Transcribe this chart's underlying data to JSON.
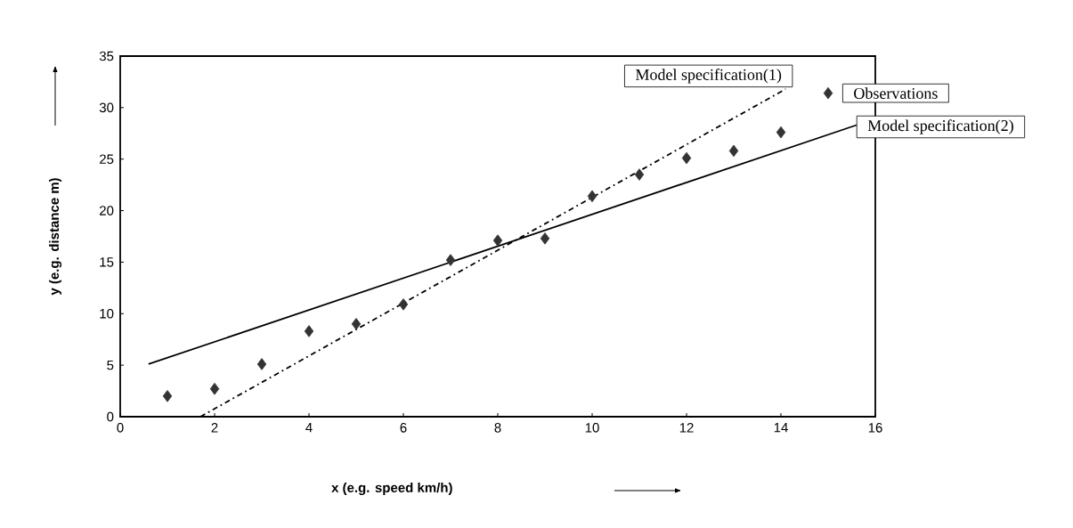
{
  "chart_data": {
    "type": "line",
    "xlabel": "x (e.g. speed km/h)",
    "ylabel": "y (e.g. distance m)",
    "xlim": [
      0,
      16
    ],
    "ylim": [
      0,
      35
    ],
    "xticks": [
      0,
      2,
      4,
      6,
      8,
      10,
      12,
      14,
      16
    ],
    "yticks": [
      0,
      5,
      10,
      15,
      20,
      25,
      30,
      35
    ],
    "grid": false,
    "series": [
      {
        "name": "Model specification(1)",
        "type": "line",
        "color": "#000000",
        "line_style": "dashed",
        "marker": "none",
        "x": [
          1.7,
          14.1
        ],
        "values": [
          0,
          31.8
        ]
      },
      {
        "name": "Observations",
        "type": "scatter",
        "color": "#333333",
        "marker": "diamond",
        "x": [
          1,
          2,
          3,
          4,
          5,
          6,
          7,
          8,
          9,
          10,
          11,
          12,
          13,
          14,
          15
        ],
        "values": [
          2.0,
          2.7,
          5.1,
          8.3,
          9.0,
          10.9,
          15.2,
          17.1,
          17.3,
          21.4,
          23.5,
          25.1,
          25.8,
          27.6,
          31.4
        ]
      },
      {
        "name": "Model specification(2)",
        "type": "line",
        "color": "#000000",
        "line_style": "solid",
        "marker": "none",
        "x": [
          0.6,
          15.6
        ],
        "values": [
          5.1,
          28.3
        ]
      }
    ]
  }
}
